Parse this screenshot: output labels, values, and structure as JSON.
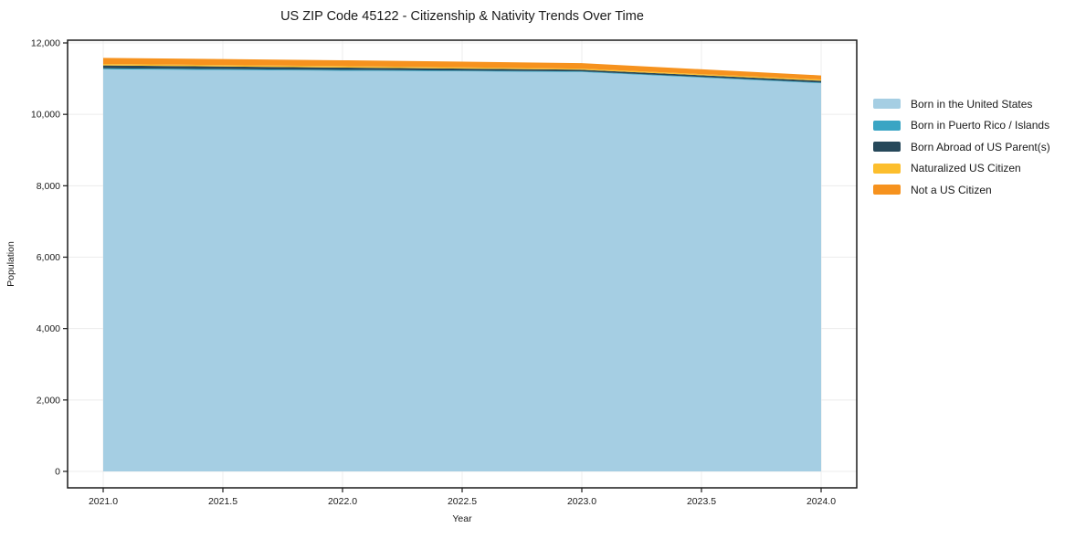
{
  "chart_data": {
    "type": "area",
    "stacked": true,
    "title": "US ZIP Code 45122 - Citizenship & Nativity Trends Over Time",
    "xlabel": "Year",
    "ylabel": "Population",
    "x": [
      2021,
      2022,
      2023,
      2024
    ],
    "series": [
      {
        "name": "Born in the United States",
        "color": "#a5cee3",
        "values": [
          11260,
          11220,
          11185,
          10870
        ]
      },
      {
        "name": "Born in Puerto Rico / Islands",
        "color": "#3aa5c4",
        "values": [
          30,
          25,
          20,
          20
        ]
      },
      {
        "name": "Born Abroad of US Parent(s)",
        "color": "#26485a",
        "values": [
          80,
          65,
          45,
          50
        ]
      },
      {
        "name": "Naturalized US Citizen",
        "color": "#fcbe2d",
        "values": [
          40,
          40,
          30,
          35
        ]
      },
      {
        "name": "Not a US Citizen",
        "color": "#f6921e",
        "values": [
          170,
          165,
          155,
          115
        ]
      }
    ],
    "xticks": [
      2021.0,
      2021.5,
      2022.0,
      2022.5,
      2023.0,
      2023.5,
      2024.0
    ],
    "xtick_labels": [
      "2021.0",
      "2021.5",
      "2022.0",
      "2022.5",
      "2023.0",
      "2023.5",
      "2024.0"
    ],
    "yticks": [
      0,
      2000,
      4000,
      6000,
      8000,
      10000,
      12000
    ],
    "ytick_labels": [
      "0",
      "2,000",
      "4,000",
      "6,000",
      "8,000",
      "10,000",
      "12,000"
    ],
    "ylim": [
      0,
      12000
    ],
    "xlim": [
      2021,
      2024
    ],
    "grid": true,
    "legend_position": "right-outside",
    "colors": {
      "text": "#1a1a1a",
      "grid": "#ececec",
      "spine": "#1a1a1a",
      "background": "#ffffff"
    }
  }
}
